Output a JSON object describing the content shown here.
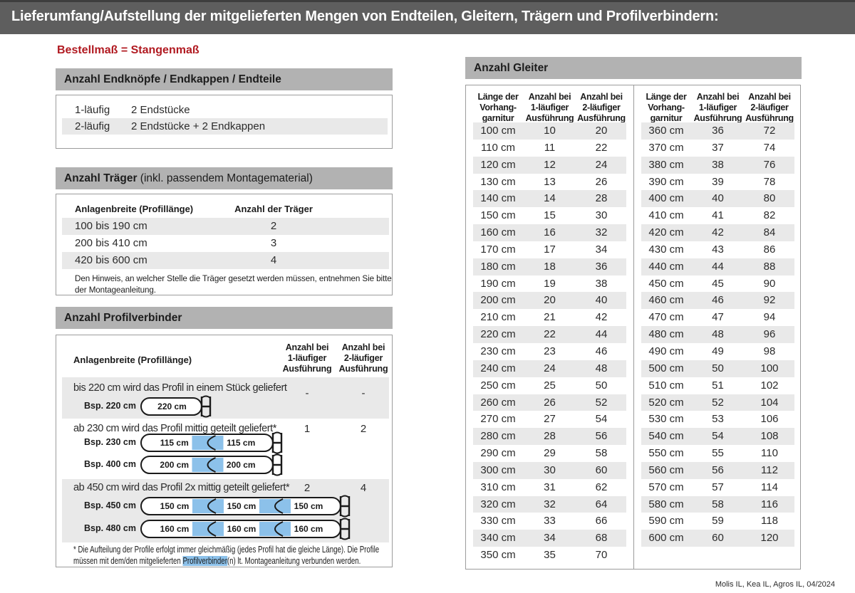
{
  "header": {
    "title": "Lieferumfang/Aufstellung der mitgelieferten Mengen von Endteilen, Gleitern, Trägern und Profilverbindern:"
  },
  "colors": {
    "accent_red": "#b11a21",
    "highlight_blue": "#8cc1ea",
    "section_header_gray": "#b2b2b2",
    "stripe_gray": "#e9e9e9",
    "topbar_gray": "#5e5e5e"
  },
  "order_note": "Bestellmaß = Stangenmaß",
  "end_parts": {
    "title": "Anzahl Endknöpfe / Endkappen / Endteile",
    "rows": [
      {
        "type": "1-läufig",
        "value": "2 Endstücke"
      },
      {
        "type": "2-läufig",
        "value": "2 Endstücke + 2 Endkappen"
      }
    ]
  },
  "traeger": {
    "title_bold": "Anzahl Träger",
    "title_rest": " (inkl. passendem Montagematerial)",
    "col1": "Anlagenbreite (Profillänge)",
    "col2": "Anzahl der Träger",
    "rows": [
      {
        "range": "100 bis 190 cm",
        "count": "2"
      },
      {
        "range": "200 bis 410 cm",
        "count": "3"
      },
      {
        "range": "420 bis 600 cm",
        "count": "4"
      }
    ],
    "note": "Den Hinweis, an welcher Stelle die Träger gesetzt werden müssen, entnehmen Sie bitte der Montageanleitung."
  },
  "profilverbinder": {
    "title": "Anzahl Profilverbinder",
    "col1": "Anlagenbreite (Profillänge)",
    "col2": [
      "Anzahl bei",
      "1-läufiger",
      "Ausführung"
    ],
    "col3": [
      "Anzahl bei",
      "2-läufiger",
      "Ausführung"
    ],
    "blocks": [
      {
        "text": "bis 220 cm wird das Profil in einem Stück geliefert",
        "v1": "-",
        "v2": "-",
        "examples": [
          {
            "label": "Bsp. 220 cm",
            "segments": [
              "220 cm"
            ]
          }
        ]
      },
      {
        "text": "ab 230 cm wird das Profil mittig geteilt geliefert*",
        "v1": "1",
        "v2": "2",
        "examples": [
          {
            "label": "Bsp. 230 cm",
            "segments": [
              "115 cm",
              "115 cm"
            ]
          },
          {
            "label": "Bsp. 400 cm",
            "segments": [
              "200 cm",
              "200 cm"
            ]
          }
        ]
      },
      {
        "text": "ab 450 cm wird das Profil 2x mittig geteilt geliefert*",
        "v1": "2",
        "v2": "4",
        "examples": [
          {
            "label": "Bsp. 450 cm",
            "segments": [
              "150 cm",
              "150 cm",
              "150 cm"
            ]
          },
          {
            "label": "Bsp. 480 cm",
            "segments": [
              "160 cm",
              "160 cm",
              "160 cm"
            ]
          }
        ]
      }
    ],
    "footnote_pre": "* Die Aufteilung der Profile erfolgt immer gleichmäßig (jedes Profil hat die gleiche Länge). Die Profile müssen mit dem/den mitgelieferten ",
    "footnote_highlight": "Profilverbinder",
    "footnote_post": "(n) lt. Montageanleitung verbunden werden."
  },
  "gleiter": {
    "title": "Anzahl Gleiter",
    "col_headers": [
      [
        "Länge der",
        "Vorhang-",
        "garnitur"
      ],
      [
        "Anzahl bei",
        "1-läufiger",
        "Ausführung"
      ],
      [
        "Anzahl bei",
        "2-läufiger",
        "Ausführung"
      ]
    ],
    "table1": [
      [
        "100 cm",
        "10",
        "20"
      ],
      [
        "110 cm",
        "11",
        "22"
      ],
      [
        "120 cm",
        "12",
        "24"
      ],
      [
        "130 cm",
        "13",
        "26"
      ],
      [
        "140 cm",
        "14",
        "28"
      ],
      [
        "150 cm",
        "15",
        "30"
      ],
      [
        "160 cm",
        "16",
        "32"
      ],
      [
        "170 cm",
        "17",
        "34"
      ],
      [
        "180 cm",
        "18",
        "36"
      ],
      [
        "190 cm",
        "19",
        "38"
      ],
      [
        "200 cm",
        "20",
        "40"
      ],
      [
        "210 cm",
        "21",
        "42"
      ],
      [
        "220 cm",
        "22",
        "44"
      ],
      [
        "230 cm",
        "23",
        "46"
      ],
      [
        "240 cm",
        "24",
        "48"
      ],
      [
        "250 cm",
        "25",
        "50"
      ],
      [
        "260 cm",
        "26",
        "52"
      ],
      [
        "270 cm",
        "27",
        "54"
      ],
      [
        "280 cm",
        "28",
        "56"
      ],
      [
        "290 cm",
        "29",
        "58"
      ],
      [
        "300 cm",
        "30",
        "60"
      ],
      [
        "310 cm",
        "31",
        "62"
      ],
      [
        "320 cm",
        "32",
        "64"
      ],
      [
        "330 cm",
        "33",
        "66"
      ],
      [
        "340 cm",
        "34",
        "68"
      ],
      [
        "350 cm",
        "35",
        "70"
      ]
    ],
    "table2": [
      [
        "360 cm",
        "36",
        "72"
      ],
      [
        "370 cm",
        "37",
        "74"
      ],
      [
        "380 cm",
        "38",
        "76"
      ],
      [
        "390 cm",
        "39",
        "78"
      ],
      [
        "400 cm",
        "40",
        "80"
      ],
      [
        "410 cm",
        "41",
        "82"
      ],
      [
        "420 cm",
        "42",
        "84"
      ],
      [
        "430 cm",
        "43",
        "86"
      ],
      [
        "440 cm",
        "44",
        "88"
      ],
      [
        "450 cm",
        "45",
        "90"
      ],
      [
        "460 cm",
        "46",
        "92"
      ],
      [
        "470 cm",
        "47",
        "94"
      ],
      [
        "480 cm",
        "48",
        "96"
      ],
      [
        "490 cm",
        "49",
        "98"
      ],
      [
        "500 cm",
        "50",
        "100"
      ],
      [
        "510 cm",
        "51",
        "102"
      ],
      [
        "520 cm",
        "52",
        "104"
      ],
      [
        "530 cm",
        "53",
        "106"
      ],
      [
        "540 cm",
        "54",
        "108"
      ],
      [
        "550 cm",
        "55",
        "110"
      ],
      [
        "560 cm",
        "56",
        "112"
      ],
      [
        "570 cm",
        "57",
        "114"
      ],
      [
        "580 cm",
        "58",
        "116"
      ],
      [
        "590 cm",
        "59",
        "118"
      ],
      [
        "600 cm",
        "60",
        "120"
      ]
    ]
  },
  "footer": {
    "note": "Molis IL, Kea IL, Agros IL, 04/2024"
  }
}
